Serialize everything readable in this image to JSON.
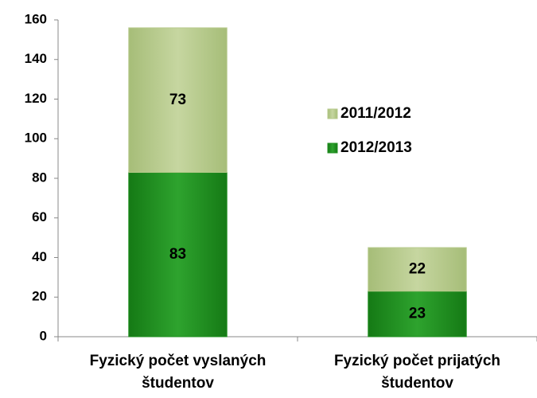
{
  "chart_data": {
    "type": "bar",
    "stacked": true,
    "categories": [
      "Fyzický počet vyslaných študentov",
      "Fyzický počet prijatých študentov"
    ],
    "series": [
      {
        "name": "2012/2013",
        "color": "#1f8f1f",
        "values": [
          83,
          23
        ]
      },
      {
        "name": "2011/2012",
        "color": "#b7ca8c",
        "values": [
          73,
          22
        ]
      }
    ],
    "ylim": [
      0,
      160
    ],
    "yticks": [
      0,
      20,
      40,
      60,
      80,
      100,
      120,
      140,
      160
    ],
    "grid": false,
    "legend": "right"
  }
}
